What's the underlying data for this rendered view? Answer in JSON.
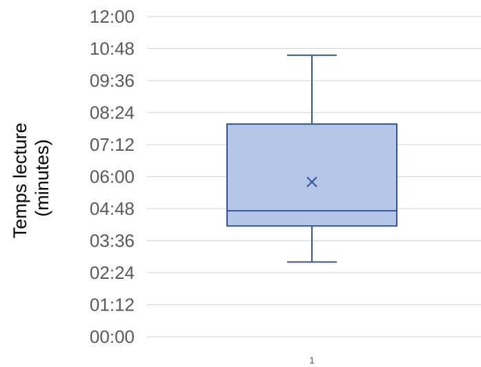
{
  "chart_data": {
    "type": "box",
    "categories": [
      "1"
    ],
    "ylabel_lines": [
      "Temps lecture",
      "(minutes)"
    ],
    "y_unit": "minutes",
    "ylim": [
      0,
      12
    ],
    "yticks": [
      0,
      1.2,
      2.4,
      3.6,
      4.8,
      6.0,
      7.2,
      8.4,
      9.6,
      10.8,
      12.0
    ],
    "ytick_labels": [
      "00:00",
      "01:12",
      "02:24",
      "03:36",
      "04:48",
      "06:00",
      "07:12",
      "08:24",
      "09:36",
      "10:48",
      "12:00"
    ],
    "grid": true,
    "legend": "none",
    "boxes": [
      {
        "category": "1",
        "whisker_low": 2.8,
        "q1": 4.15,
        "median": 4.72,
        "q3": 7.97,
        "whisker_high": 10.55,
        "mean": 5.8
      }
    ],
    "colors": {
      "box_fill": "#b4c7e7",
      "box_stroke": "#2f5597",
      "grid": "#d9d9d9",
      "tick_text": "#595959"
    }
  }
}
